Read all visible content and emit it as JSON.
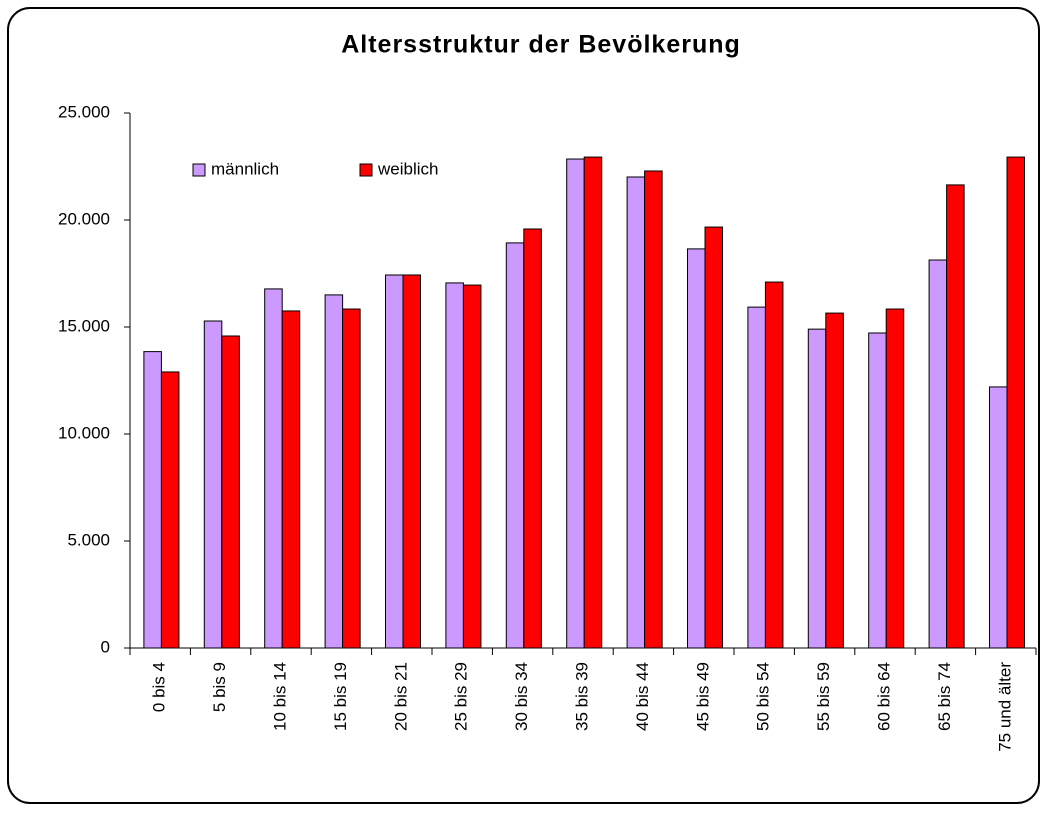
{
  "chart_data": {
    "type": "bar",
    "title": "Altersstruktur der Bevölkerung",
    "categories": [
      "0 bis 4",
      "5 bis 9",
      "10 bis 14",
      "15 bis 19",
      "20 bis 21",
      "25 bis 29",
      "30 bis 34",
      "35 bis 39",
      "40 bis 44",
      "45 bis 49",
      "50 bis 54",
      "55 bis 59",
      "60 bis 64",
      "65 bis 74",
      "75 und älter"
    ],
    "series": [
      {
        "name": "männlich",
        "color": "#cc99ff",
        "values": [
          13850,
          15280,
          16780,
          16500,
          17430,
          17060,
          18930,
          22850,
          22010,
          18650,
          15930,
          14900,
          14720,
          18130,
          12200
        ]
      },
      {
        "name": "weiblich",
        "color": "#ff0000",
        "values": [
          12900,
          14580,
          15750,
          15840,
          17430,
          16960,
          19580,
          22940,
          22290,
          19670,
          17100,
          15650,
          15840,
          21640,
          22940
        ]
      }
    ],
    "ylim": [
      0,
      25000
    ],
    "yticks": [
      0,
      {
        "value": 5000,
        "label": "5.000"
      },
      {
        "value": 10000,
        "label": "10.000"
      },
      {
        "value": 15000,
        "label": "15.000"
      },
      {
        "value": 20000,
        "label": "20.000"
      },
      {
        "value": 25000,
        "label": "25.000"
      }
    ],
    "grid": false,
    "legend": "top-left"
  }
}
